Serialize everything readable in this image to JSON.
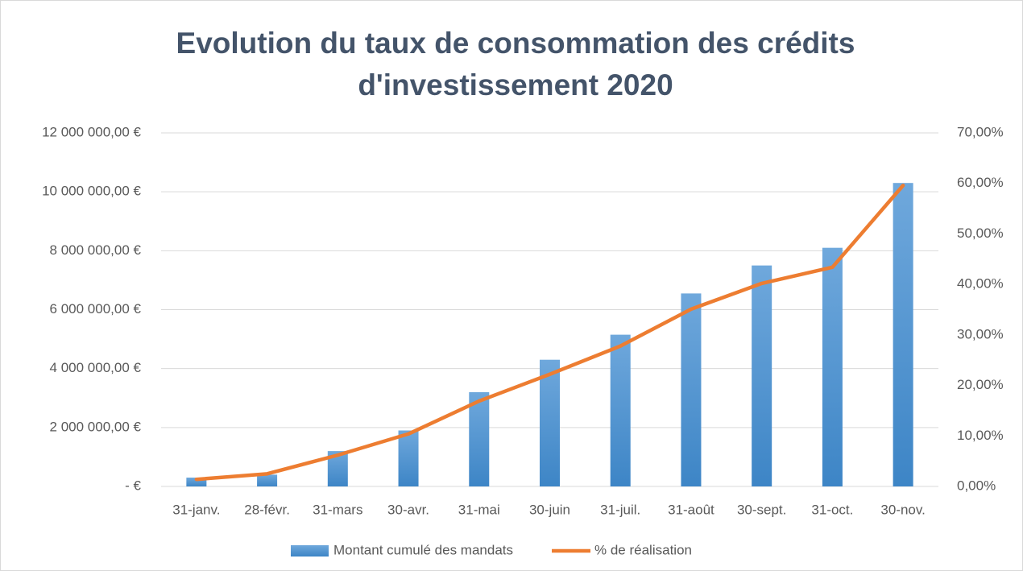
{
  "chart_data": {
    "type": "bar_line",
    "title": [
      "Evolution du taux de consommation des crédits",
      "d'investissement 2020"
    ],
    "categories": [
      "31-janv.",
      "28-févr.",
      "31-mars",
      "30-avr.",
      "31-mai",
      "30-juin",
      "31-juil.",
      "31-août",
      "30-sept.",
      "31-oct.",
      "30-nov."
    ],
    "series": [
      {
        "name": "Montant cumulé des mandats",
        "type": "bar",
        "color": "#5b9bd5",
        "values": [
          300000,
          400000,
          1200000,
          1900000,
          3200000,
          4300000,
          5150000,
          6550000,
          7500000,
          8100000,
          10300000
        ]
      },
      {
        "name": "% de réalisation",
        "type": "line",
        "axis": "y2",
        "color": "#ed7d31",
        "values": [
          1.4,
          2.5,
          6.2,
          10.4,
          16.9,
          22.2,
          27.8,
          35.1,
          40.2,
          43.4,
          59.6
        ]
      }
    ],
    "ylim": [
      0,
      12000000
    ],
    "yticks": [
      {
        "value": 0,
        "label": "-   €"
      },
      {
        "value": 2000000,
        "label": "2 000 000,00 €"
      },
      {
        "value": 4000000,
        "label": "4 000 000,00 €"
      },
      {
        "value": 6000000,
        "label": "6 000 000,00 €"
      },
      {
        "value": 8000000,
        "label": "8 000 000,00 €"
      },
      {
        "value": 10000000,
        "label": "10 000 000,00 €"
      },
      {
        "value": 12000000,
        "label": "12 000 000,00 €"
      }
    ],
    "y2lim": [
      0,
      70
    ],
    "y2ticks": [
      {
        "value": 0,
        "label": "0,00%"
      },
      {
        "value": 10,
        "label": "10,00%"
      },
      {
        "value": 20,
        "label": "20,00%"
      },
      {
        "value": 30,
        "label": "30,00%"
      },
      {
        "value": 40,
        "label": "40,00%"
      },
      {
        "value": 50,
        "label": "50,00%"
      },
      {
        "value": 60,
        "label": "60,00%"
      },
      {
        "value": 70,
        "label": "70,00%"
      }
    ],
    "grid": true,
    "legend": "bottom"
  }
}
